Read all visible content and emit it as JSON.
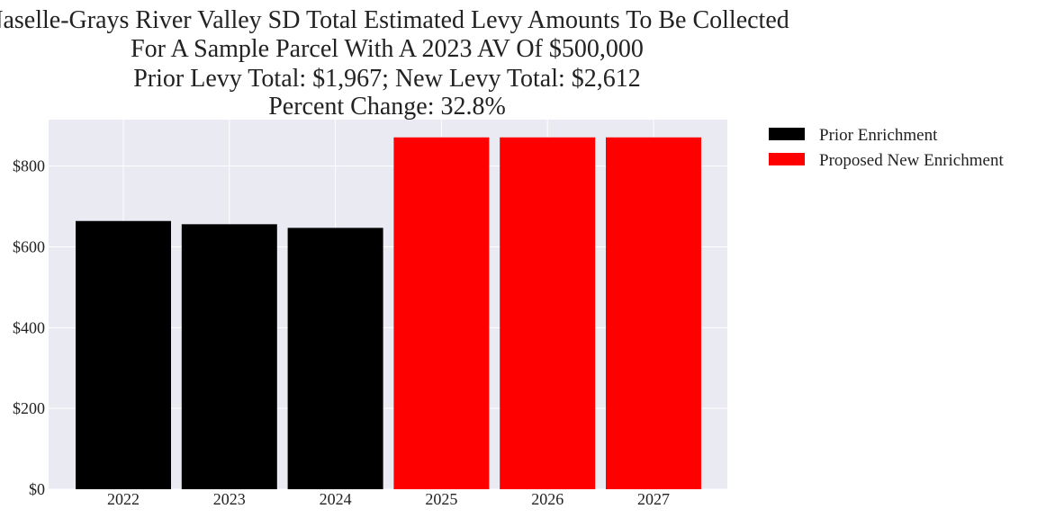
{
  "chart_data": {
    "type": "bar",
    "title_lines": [
      "Naselle-Grays River Valley SD Total Estimated Levy Amounts To Be Collected",
      "For A Sample Parcel With A 2023 AV Of $500,000",
      "Prior Levy Total:  $1,967; New Levy Total: $2,612",
      "Percent Change: 32.8%"
    ],
    "categories": [
      "2022",
      "2023",
      "2024",
      "2025",
      "2026",
      "2027"
    ],
    "series": [
      {
        "name": "Prior Enrichment",
        "color": "#000000",
        "values": [
          664,
          656,
          647,
          null,
          null,
          null
        ]
      },
      {
        "name": "Proposed New Enrichment",
        "color": "#ff0000",
        "values": [
          null,
          null,
          null,
          871,
          871,
          871
        ]
      }
    ],
    "y_ticks": [
      0,
      200,
      400,
      600,
      800
    ],
    "y_tick_labels": [
      "$0",
      "$200",
      "$400",
      "$600",
      "$800"
    ],
    "ylim": [
      0,
      915
    ],
    "xlabel": "",
    "ylabel": "",
    "grid": true,
    "plot_background": "#eaeaf2",
    "legend_position": "outside-top-right"
  }
}
